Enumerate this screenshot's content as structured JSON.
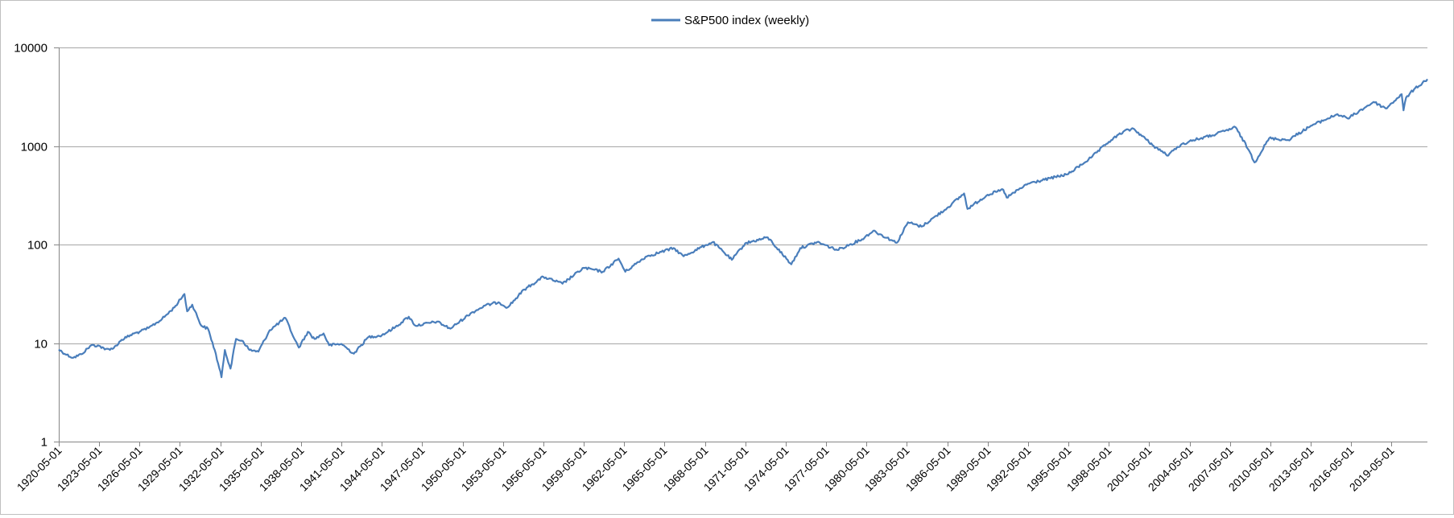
{
  "chart_data": {
    "type": "line",
    "yscale": "log",
    "ylim": [
      1,
      10000
    ],
    "xlim": [
      "1920-05-01",
      "2022-01-01"
    ],
    "y_tick_labels": [
      "1",
      "10",
      "100",
      "1000",
      "10000"
    ],
    "x_tick_labels": [
      "1920-05-01",
      "1923-05-01",
      "1926-05-01",
      "1929-05-01",
      "1932-05-01",
      "1935-05-01",
      "1938-05-01",
      "1941-05-01",
      "1944-05-01",
      "1947-05-01",
      "1950-05-01",
      "1953-05-01",
      "1956-05-01",
      "1959-05-01",
      "1962-05-01",
      "1965-05-01",
      "1968-05-01",
      "1971-05-01",
      "1974-05-01",
      "1977-05-01",
      "1980-05-01",
      "1983-05-01",
      "1986-05-01",
      "1989-05-01",
      "1992-05-01",
      "1995-05-01",
      "1998-05-01",
      "2001-05-01",
      "2004-05-01",
      "2007-05-01",
      "2010-05-01",
      "2013-05-01",
      "2016-05-01",
      "2019-05-01"
    ],
    "grid": "horizontal-major",
    "legend_position": "top-center",
    "colors": {
      "series": "#4a7ebb",
      "grid": "#a6a6a6",
      "axis": "#868686"
    },
    "series": [
      {
        "name": "S&P500 index (weekly)",
        "points": [
          [
            "1920-05-01",
            8.6
          ],
          [
            "1920-12-01",
            7.6
          ],
          [
            "1921-06-01",
            7.1
          ],
          [
            "1922-01-01",
            7.7
          ],
          [
            "1922-10-01",
            9.5
          ],
          [
            "1923-05-01",
            9.4
          ],
          [
            "1923-10-01",
            8.6
          ],
          [
            "1924-06-01",
            8.9
          ],
          [
            "1925-01-01",
            10.8
          ],
          [
            "1925-12-01",
            12.5
          ],
          [
            "1926-05-01",
            13.0
          ],
          [
            "1927-01-01",
            14.2
          ],
          [
            "1928-01-01",
            17.5
          ],
          [
            "1928-12-01",
            23.0
          ],
          [
            "1929-09-01",
            31.5
          ],
          [
            "1929-11-15",
            21.0
          ],
          [
            "1930-04-01",
            24.5
          ],
          [
            "1930-12-01",
            15.0
          ],
          [
            "1931-06-01",
            14.0
          ],
          [
            "1931-12-01",
            8.5
          ],
          [
            "1932-06-01",
            4.5
          ],
          [
            "1932-09-01",
            8.5
          ],
          [
            "1933-02-01",
            5.5
          ],
          [
            "1933-07-01",
            11.0
          ],
          [
            "1934-01-01",
            10.5
          ],
          [
            "1934-07-01",
            8.5
          ],
          [
            "1935-03-01",
            8.2
          ],
          [
            "1936-01-01",
            13.5
          ],
          [
            "1937-03-01",
            18.0
          ],
          [
            "1937-11-01",
            11.0
          ],
          [
            "1938-03-01",
            9.0
          ],
          [
            "1938-11-01",
            13.0
          ],
          [
            "1939-05-01",
            11.0
          ],
          [
            "1940-01-01",
            12.5
          ],
          [
            "1940-06-01",
            9.5
          ],
          [
            "1941-05-01",
            9.8
          ],
          [
            "1942-04-01",
            7.8
          ],
          [
            "1943-05-01",
            11.5
          ],
          [
            "1944-05-01",
            12.0
          ],
          [
            "1945-05-01",
            14.5
          ],
          [
            "1946-05-01",
            18.5
          ],
          [
            "1946-11-01",
            15.0
          ],
          [
            "1948-06-01",
            16.5
          ],
          [
            "1949-06-01",
            14.0
          ],
          [
            "1950-12-01",
            20.0
          ],
          [
            "1952-01-01",
            24.0
          ],
          [
            "1953-01-01",
            26.0
          ],
          [
            "1953-09-01",
            23.0
          ],
          [
            "1954-12-01",
            35.0
          ],
          [
            "1956-05-01",
            47.0
          ],
          [
            "1957-10-01",
            40.0
          ],
          [
            "1959-05-01",
            58.0
          ],
          [
            "1960-10-01",
            53.0
          ],
          [
            "1961-12-01",
            72.0
          ],
          [
            "1962-06-01",
            53.0
          ],
          [
            "1963-12-01",
            75.0
          ],
          [
            "1966-01-01",
            92.0
          ],
          [
            "1966-10-01",
            76.0
          ],
          [
            "1968-05-01",
            98.0
          ],
          [
            "1968-12-01",
            106.0
          ],
          [
            "1970-05-01",
            70.0
          ],
          [
            "1971-05-01",
            103.0
          ],
          [
            "1973-01-01",
            118.0
          ],
          [
            "1974-10-01",
            63.0
          ],
          [
            "1975-06-01",
            92.0
          ],
          [
            "1976-09-01",
            106.0
          ],
          [
            "1978-03-01",
            88.0
          ],
          [
            "1980-01-01",
            113.0
          ],
          [
            "1980-11-01",
            138.0
          ],
          [
            "1982-08-01",
            104.0
          ],
          [
            "1983-06-01",
            168.0
          ],
          [
            "1984-06-01",
            152.0
          ],
          [
            "1986-05-01",
            235.0
          ],
          [
            "1987-08-01",
            330.0
          ],
          [
            "1987-11-01",
            230.0
          ],
          [
            "1989-05-01",
            320.0
          ],
          [
            "1990-07-01",
            360.0
          ],
          [
            "1990-10-01",
            300.0
          ],
          [
            "1992-05-01",
            415.0
          ],
          [
            "1994-01-01",
            470.0
          ],
          [
            "1995-05-01",
            520.0
          ],
          [
            "1997-01-01",
            760.0
          ],
          [
            "1998-05-01",
            1100.0
          ],
          [
            "1999-06-01",
            1400.0
          ],
          [
            "2000-03-01",
            1500.0
          ],
          [
            "2001-09-01",
            1000.0
          ],
          [
            "2002-10-01",
            800.0
          ],
          [
            "2003-06-01",
            980.0
          ],
          [
            "2004-05-01",
            1120.0
          ],
          [
            "2006-01-01",
            1280.0
          ],
          [
            "2007-10-01",
            1550.0
          ],
          [
            "2008-10-01",
            900.0
          ],
          [
            "2009-03-01",
            680.0
          ],
          [
            "2010-04-01",
            1200.0
          ],
          [
            "2011-09-01",
            1150.0
          ],
          [
            "2013-05-01",
            1600.0
          ],
          [
            "2015-05-01",
            2100.0
          ],
          [
            "2016-02-01",
            1900.0
          ],
          [
            "2018-01-01",
            2800.0
          ],
          [
            "2018-12-01",
            2400.0
          ],
          [
            "2020-02-01",
            3350.0
          ],
          [
            "2020-03-23",
            2300.0
          ],
          [
            "2020-06-01",
            3100.0
          ],
          [
            "2021-01-01",
            3750.0
          ],
          [
            "2021-12-31",
            4766.0
          ]
        ]
      }
    ]
  }
}
